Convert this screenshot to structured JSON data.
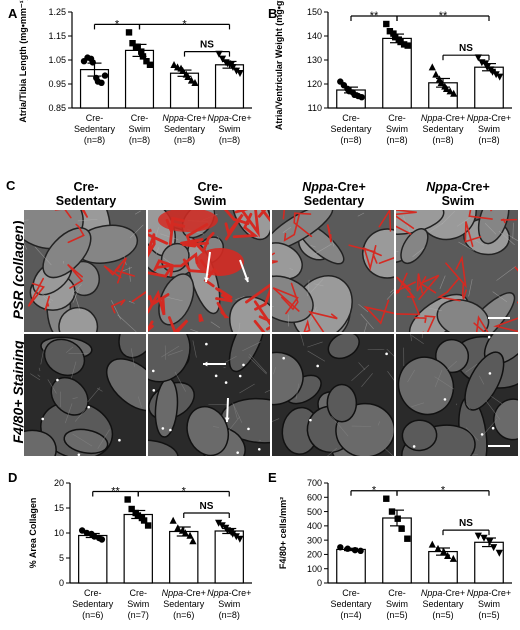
{
  "panels": {
    "A": "A",
    "B": "B",
    "C": "C",
    "D": "D",
    "E": "E"
  },
  "colors": {
    "psr_red": "#d42a22",
    "tissue_gray": "#8a8a8a",
    "dark": "#1a1a1a"
  },
  "panel_c": {
    "columns": [
      {
        "line1": "Cre-",
        "line2": "Sedentary"
      },
      {
        "line1": "Cre-",
        "line2": "Swim"
      },
      {
        "line1": "Nppa-Cre+",
        "line2": "Sedentary"
      },
      {
        "line1": "Nppa-Cre+",
        "line2": "Swim"
      }
    ],
    "rows": [
      "PSR (collagen)",
      "F4/80+ Staining"
    ]
  },
  "chart_data": [
    {
      "id": "A",
      "type": "bar",
      "ylabel": "Atria/Tibia Length (mg•mm⁻¹)",
      "ylim": [
        0.85,
        1.25
      ],
      "yticks": [
        "0.85",
        "0.95",
        "1.05",
        "1.15",
        "1.25"
      ],
      "categories": [
        [
          "Cre-",
          "Sedentary",
          "(n=8)"
        ],
        [
          "Cre-",
          "Swim",
          "(n=8)"
        ],
        [
          "Nppa-Cre+",
          "Sedentary",
          "(n=8)"
        ],
        [
          "Nppa-Cre+",
          "Swim",
          "(n=8)"
        ]
      ],
      "values": [
        1.01,
        1.09,
        0.995,
        1.03
      ],
      "errors": [
        0.027,
        0.025,
        0.013,
        0.014
      ],
      "markers": [
        "circle",
        "square",
        "triangle",
        "inv-triangle"
      ],
      "points": [
        [
          1.045,
          1.06,
          1.055,
          1.04,
          0.975,
          0.96,
          0.955,
          0.985
        ],
        [
          1.165,
          1.12,
          1.105,
          1.105,
          1.085,
          1.065,
          1.045,
          1.03
        ],
        [
          1.03,
          1.02,
          1.015,
          1.005,
          0.99,
          0.98,
          0.965,
          0.955
        ],
        [
          1.075,
          1.055,
          1.04,
          1.035,
          1.03,
          1.02,
          1.005,
          0.995
        ]
      ],
      "brackets": [
        {
          "from": 0,
          "to": 1,
          "label": "*"
        },
        {
          "from": 1,
          "to": 3,
          "label": "*"
        },
        {
          "from": 2,
          "to": 3,
          "label": "NS",
          "y": 1.085
        }
      ]
    },
    {
      "id": "B",
      "type": "bar",
      "ylabel": "Atria/Ventricular Weight (mg•g⁻¹)",
      "ylim": [
        110,
        150
      ],
      "yticks": [
        "110",
        "120",
        "130",
        "140",
        "150"
      ],
      "categories": [
        [
          "Cre-",
          "Sedentary",
          "(n=8)"
        ],
        [
          "Cre-",
          "Swim",
          "(n=8)"
        ],
        [
          "Nppa-Cre+",
          "Sedentary",
          "(n=8)"
        ],
        [
          "Nppa-Cre+",
          "Swim",
          "(n=8)"
        ]
      ],
      "values": [
        117.5,
        139,
        120.5,
        127
      ],
      "errors": [
        1.2,
        1.8,
        1.8,
        1.5
      ],
      "markers": [
        "circle",
        "square",
        "triangle",
        "inv-triangle"
      ],
      "points": [
        [
          121,
          119.5,
          118,
          117,
          116.5,
          115.5,
          115,
          114.5
        ],
        [
          145,
          142,
          141,
          139.5,
          138.5,
          137.5,
          136.5,
          136
        ],
        [
          127,
          124,
          122,
          120.5,
          119,
          118,
          117,
          116
        ],
        [
          131,
          129,
          128.5,
          127,
          126,
          125,
          124,
          123
        ]
      ],
      "brackets": [
        {
          "from": 0,
          "to": 1,
          "label": "**"
        },
        {
          "from": 1,
          "to": 3,
          "label": "**"
        },
        {
          "from": 2,
          "to": 3,
          "label": "NS",
          "y": 132
        }
      ]
    },
    {
      "id": "D",
      "type": "bar",
      "ylabel": "% Area Collagen",
      "ylim": [
        0,
        20
      ],
      "yticks": [
        "0",
        "5",
        "10",
        "15",
        "20"
      ],
      "categories": [
        [
          "Cre-",
          "Sedentary",
          "(n=6)"
        ],
        [
          "Cre-",
          "Swim",
          "(n=7)"
        ],
        [
          "Nppa-Cre+",
          "Sedentary",
          "(n=6)"
        ],
        [
          "Nppa-Cre+",
          "Swim",
          "(n=8)"
        ]
      ],
      "values": [
        9.5,
        13.7,
        10.3,
        10.4
      ],
      "errors": [
        0.4,
        0.8,
        0.9,
        0.5
      ],
      "markers": [
        "circle",
        "square",
        "triangle",
        "inv-triangle"
      ],
      "points": [
        [
          10.5,
          10,
          9.8,
          9.3,
          9,
          8.7
        ],
        [
          16.7,
          14.8,
          14,
          13.5,
          13,
          12.5,
          11.5
        ],
        [
          12.5,
          11,
          10.5,
          10,
          9.5,
          8.4
        ],
        [
          12,
          11.5,
          11,
          10.5,
          10.2,
          9.8,
          9.3,
          8.8
        ]
      ],
      "brackets": [
        {
          "from": 0,
          "to": 1,
          "label": "**"
        },
        {
          "from": 1,
          "to": 3,
          "label": "*"
        },
        {
          "from": 2,
          "to": 3,
          "label": "NS",
          "y": 14
        }
      ]
    },
    {
      "id": "E",
      "type": "bar",
      "ylabel": "F4/80+ cells/mm²",
      "ylim": [
        0,
        700
      ],
      "yticks": [
        "0",
        "100",
        "200",
        "300",
        "400",
        "500",
        "600",
        "700"
      ],
      "categories": [
        [
          "Cre-",
          "Sedentary",
          "(n=4)"
        ],
        [
          "Cre-",
          "Swim",
          "(n=5)"
        ],
        [
          "Nppa-Cre+",
          "Sedentary",
          "(n=5)"
        ],
        [
          "Nppa-Cre+",
          "Swim",
          "(n=5)"
        ]
      ],
      "values": [
        235,
        455,
        220,
        285
      ],
      "errors": [
        8,
        55,
        25,
        30
      ],
      "markers": [
        "circle",
        "square",
        "triangle",
        "inv-triangle"
      ],
      "points": [
        [
          250,
          240,
          230,
          225
        ],
        [
          590,
          500,
          450,
          380,
          310
        ],
        [
          270,
          240,
          220,
          190,
          170
        ],
        [
          330,
          315,
          290,
          250,
          210
        ]
      ],
      "brackets": [
        {
          "from": 0,
          "to": 1,
          "label": "*"
        },
        {
          "from": 1,
          "to": 3,
          "label": "*"
        },
        {
          "from": 2,
          "to": 3,
          "label": "NS",
          "y": 370
        }
      ]
    }
  ]
}
